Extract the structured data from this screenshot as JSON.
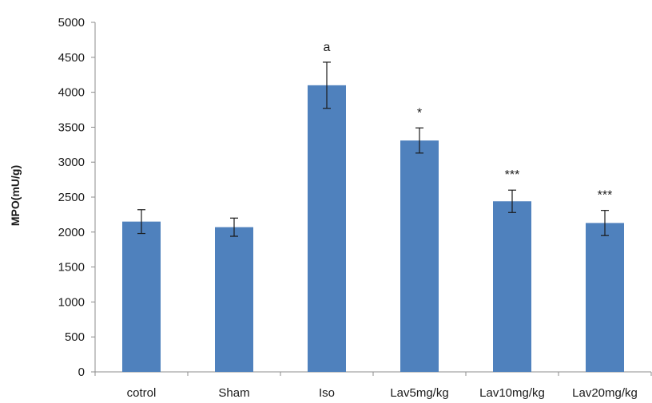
{
  "chart_data": {
    "type": "bar",
    "title": "",
    "xlabel": "",
    "ylabel": "MPO(mU/g)",
    "ylim": [
      0,
      5000
    ],
    "yticks": [
      0,
      500,
      1000,
      1500,
      2000,
      2500,
      3000,
      3500,
      4000,
      4500,
      5000
    ],
    "grid": false,
    "legend": "none",
    "categories": [
      "cotrol",
      "Sham",
      "Iso",
      "Lav5mg/kg",
      "Lav10mg/kg",
      "Lav20mg/kg"
    ],
    "values": [
      2150,
      2070,
      4100,
      3310,
      2440,
      2130
    ],
    "errors": [
      170,
      130,
      330,
      180,
      160,
      180
    ],
    "annotations": [
      "",
      "",
      "a",
      "*",
      "***",
      "***"
    ],
    "colors": {
      "bar": "#4f81bd",
      "axis": "#8c8c8c",
      "error": "#1a1a1a"
    }
  }
}
